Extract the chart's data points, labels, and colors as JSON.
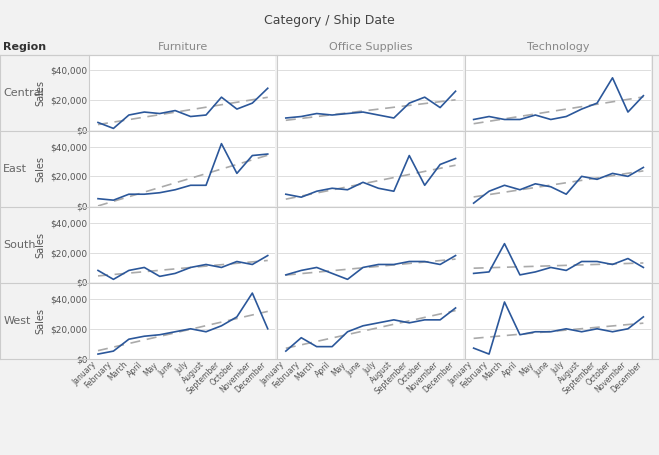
{
  "title": "Category / Ship Date",
  "col_labels": [
    "Furniture",
    "Office Supplies",
    "Technology"
  ],
  "row_labels": [
    "Central",
    "East",
    "South",
    "West"
  ],
  "ylabel": "Sales",
  "months": [
    "January",
    "February",
    "March",
    "April",
    "May",
    "June",
    "July",
    "August",
    "September",
    "October",
    "November",
    "December"
  ],
  "sales": {
    "Central": {
      "Furniture": [
        5000,
        1000,
        10000,
        12000,
        11000,
        13000,
        9000,
        10000,
        22000,
        14000,
        18000,
        28000
      ],
      "Office Supplies": [
        8000,
        9000,
        11000,
        10000,
        11000,
        12000,
        10000,
        8000,
        18000,
        22000,
        15000,
        26000
      ],
      "Technology": [
        7000,
        9000,
        7000,
        7000,
        10000,
        7000,
        9000,
        14000,
        18000,
        35000,
        12000,
        23000
      ]
    },
    "East": {
      "Furniture": [
        5000,
        4000,
        8000,
        8000,
        9000,
        11000,
        14000,
        14000,
        42000,
        22000,
        34000,
        35000
      ],
      "Office Supplies": [
        8000,
        6000,
        10000,
        12000,
        11000,
        16000,
        12000,
        10000,
        34000,
        14000,
        28000,
        32000
      ],
      "Technology": [
        2000,
        10000,
        14000,
        11000,
        15000,
        13000,
        8000,
        20000,
        18000,
        22000,
        20000,
        26000
      ]
    },
    "South": {
      "Furniture": [
        8000,
        2000,
        8000,
        10000,
        4000,
        6000,
        10000,
        12000,
        10000,
        14000,
        12000,
        18000
      ],
      "Office Supplies": [
        5000,
        8000,
        10000,
        6000,
        2000,
        10000,
        12000,
        12000,
        14000,
        14000,
        12000,
        18000
      ],
      "Technology": [
        6000,
        7000,
        26000,
        5000,
        7000,
        10000,
        8000,
        14000,
        14000,
        12000,
        16000,
        10000
      ]
    },
    "West": {
      "Furniture": [
        3000,
        5000,
        13000,
        15000,
        16000,
        18000,
        20000,
        18000,
        22000,
        28000,
        44000,
        20000
      ],
      "Office Supplies": [
        5000,
        14000,
        8000,
        8000,
        18000,
        22000,
        24000,
        26000,
        24000,
        26000,
        26000,
        34000
      ],
      "Technology": [
        7000,
        3000,
        38000,
        16000,
        18000,
        18000,
        20000,
        18000,
        20000,
        18000,
        20000,
        28000
      ]
    }
  },
  "line_color": "#2b579a",
  "trend_color": "#aaaaaa",
  "background_color": "#f2f2f2",
  "cell_background": "#ffffff",
  "label_color": "#555555",
  "grid_color": "#d0d0d0",
  "border_color": "#cccccc",
  "title_color": "#444444",
  "row_label_color": "#666666",
  "col_label_color": "#888888",
  "ylim": [
    0,
    50000
  ],
  "yticks": [
    0,
    20000,
    40000
  ],
  "ytick_labels": [
    "$0",
    "$20,000",
    "$40,000"
  ]
}
